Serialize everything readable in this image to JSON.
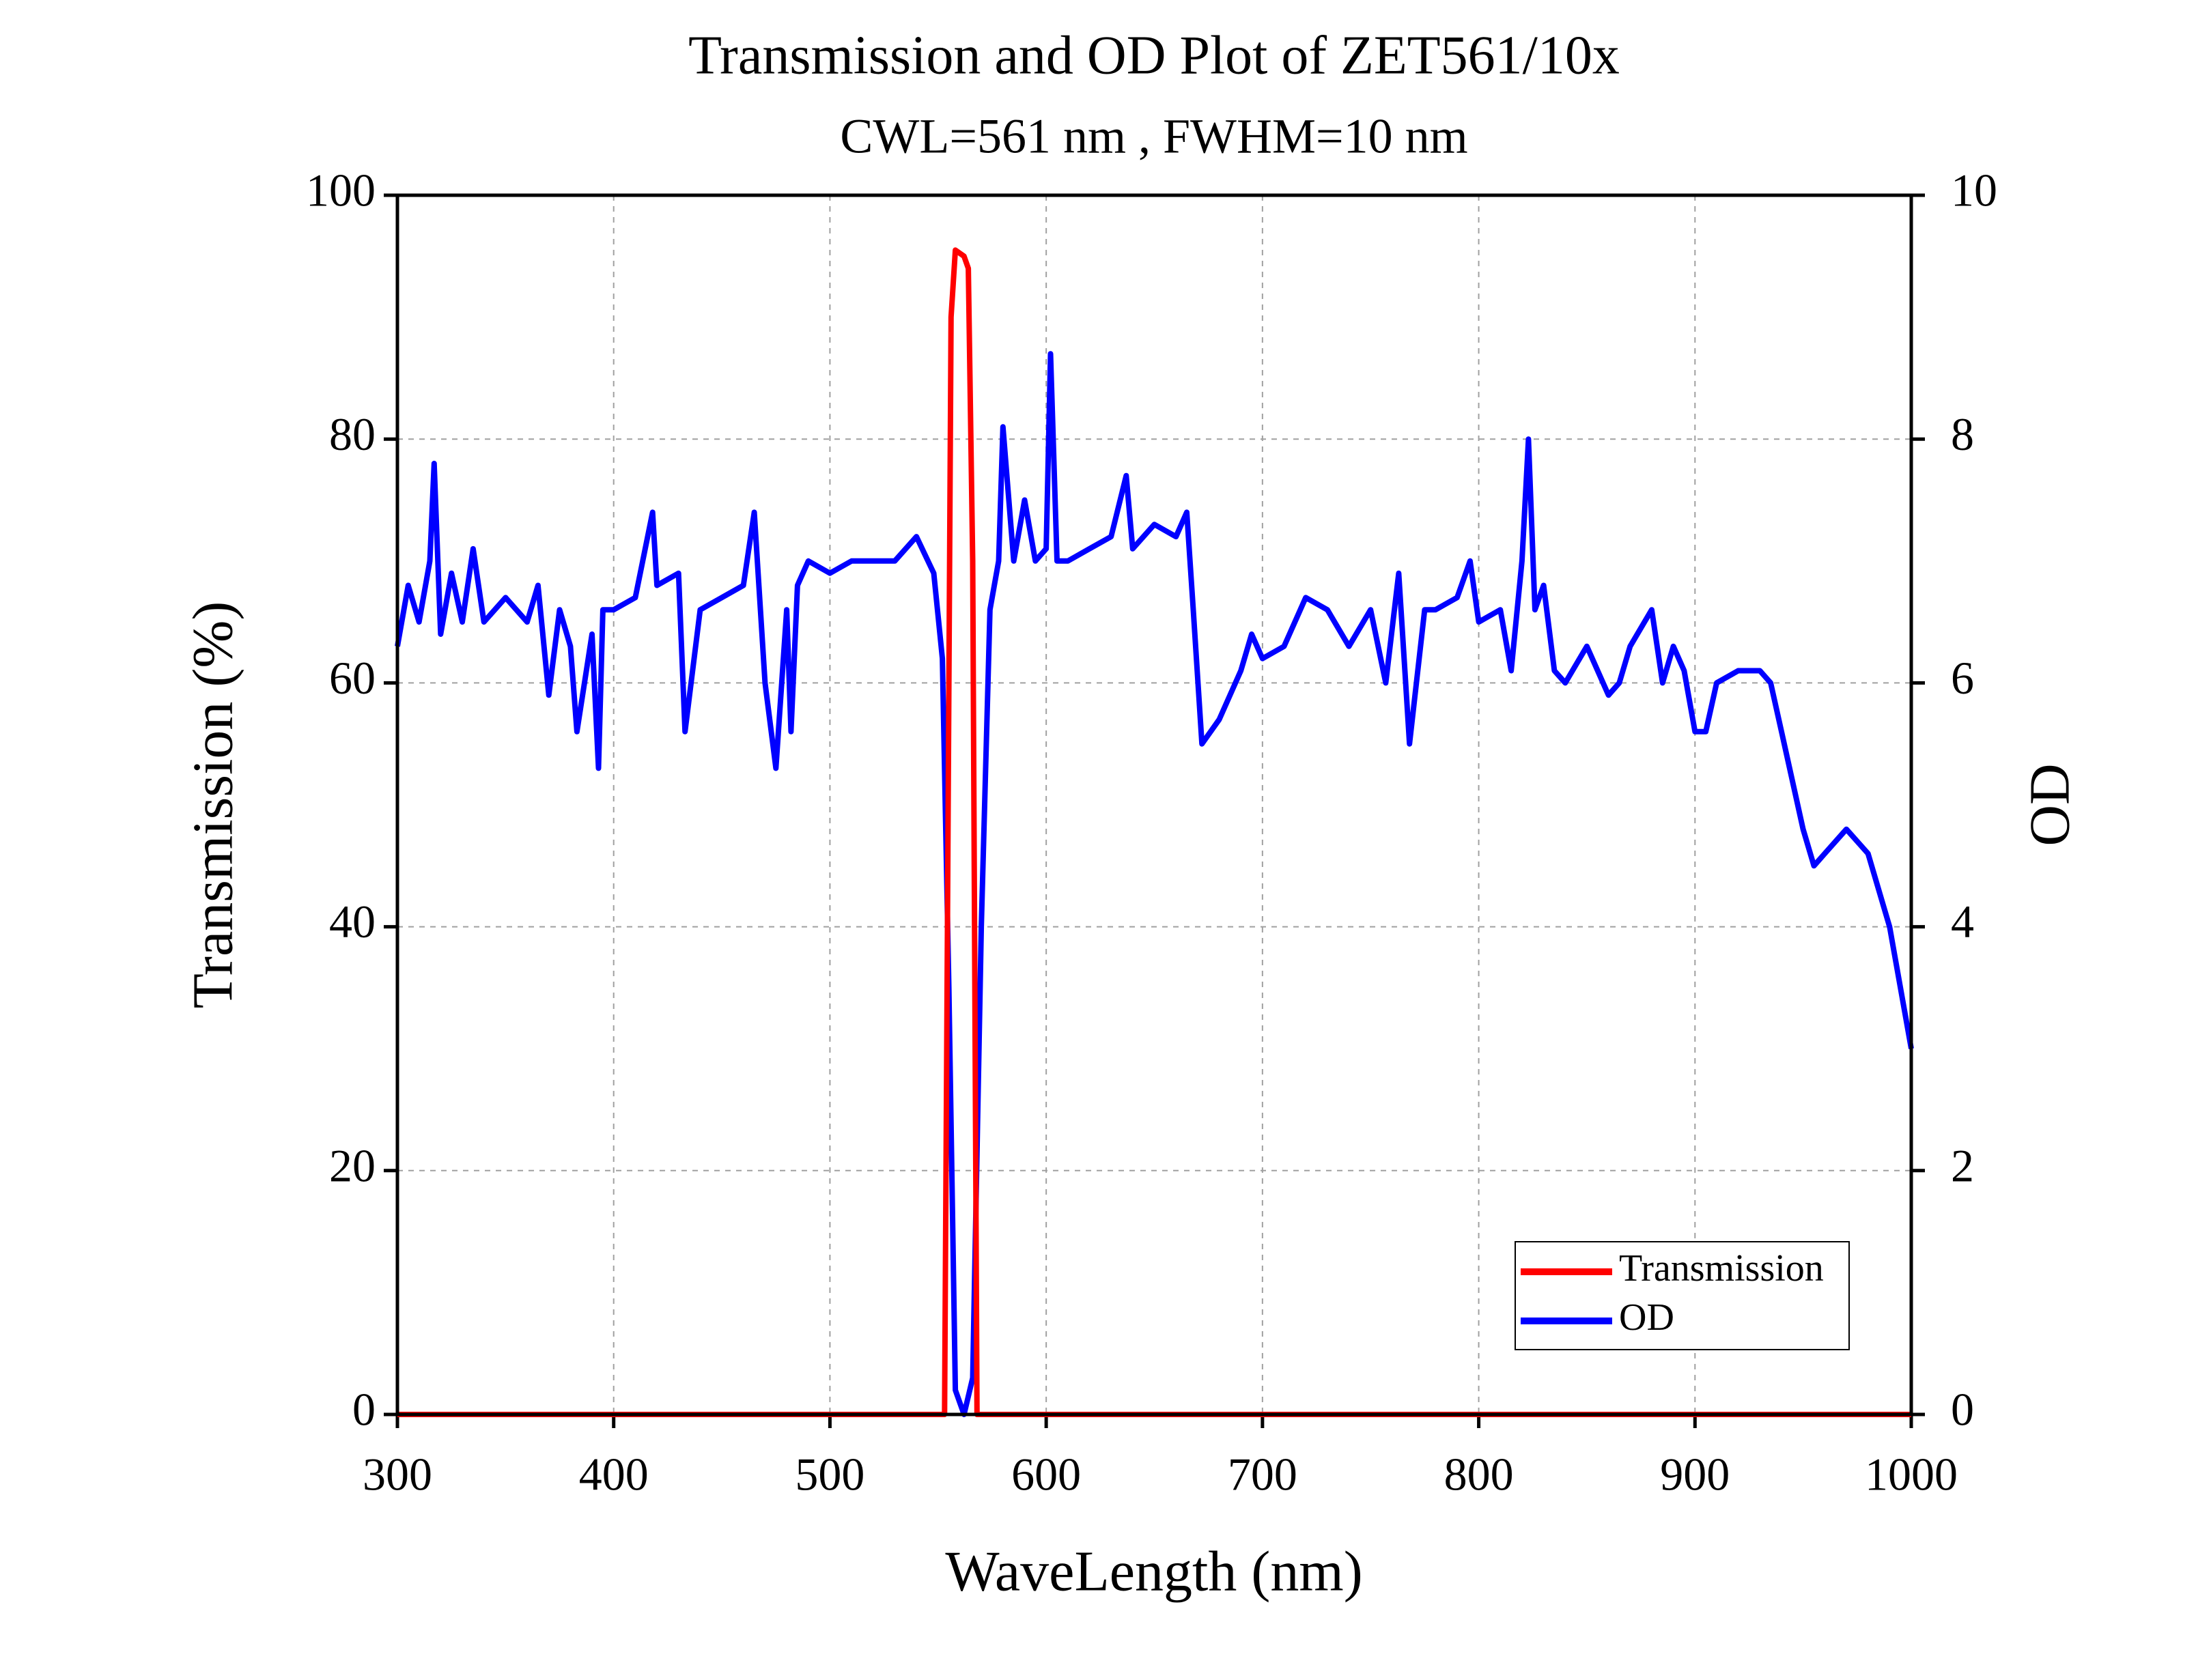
{
  "chart_data": {
    "type": "line",
    "title": "Transmission and OD Plot of ZET561/10x",
    "subtitle": "CWL=561 nm , FWHM=10 nm",
    "x_label": "WaveLength (nm)",
    "y_label": "Transmission (%)",
    "y2_label": "OD",
    "xlim": [
      300,
      1000
    ],
    "xticks": [
      300,
      400,
      500,
      600,
      700,
      800,
      900,
      1000
    ],
    "ylim": [
      0,
      100
    ],
    "yticks": [
      0,
      20,
      40,
      60,
      80,
      100
    ],
    "y2lim": [
      0,
      10
    ],
    "y2ticks": [
      0,
      2,
      4,
      6,
      8,
      10
    ],
    "grid": true,
    "legend": "lower right",
    "series": [
      {
        "name": "Transmission",
        "color": "#ff0000",
        "x": [
          300,
          553,
          556,
          558,
          562,
          564,
          566,
          568,
          1000
        ],
        "values": [
          0,
          0,
          90,
          95.5,
          95,
          94,
          70,
          0,
          0
        ]
      },
      {
        "name": "OD",
        "color": "#0000ff",
        "axis": "y2",
        "x": [
          300,
          305,
          310,
          315,
          317,
          320,
          325,
          330,
          335,
          340,
          350,
          360,
          365,
          370,
          375,
          380,
          383,
          390,
          393,
          395,
          400,
          410,
          418,
          420,
          430,
          433,
          440,
          450,
          460,
          465,
          470,
          475,
          480,
          482,
          485,
          490,
          500,
          510,
          520,
          530,
          540,
          548,
          552,
          555,
          558,
          562,
          566,
          570,
          574,
          578,
          580,
          585,
          590,
          595,
          600,
          602,
          605,
          610,
          620,
          630,
          637,
          640,
          650,
          660,
          665,
          668,
          672,
          680,
          690,
          695,
          700,
          710,
          720,
          730,
          740,
          750,
          757,
          763,
          768,
          775,
          780,
          790,
          796,
          800,
          810,
          815,
          820,
          823,
          826,
          830,
          835,
          840,
          850,
          860,
          865,
          870,
          880,
          885,
          890,
          895,
          900,
          905,
          910,
          920,
          930,
          935,
          940,
          950,
          955,
          960,
          970,
          980,
          990,
          1000
        ],
        "values": [
          6.3,
          6.8,
          6.5,
          7.0,
          7.8,
          6.4,
          6.9,
          6.5,
          7.1,
          6.5,
          6.7,
          6.5,
          6.8,
          5.9,
          6.6,
          6.3,
          5.6,
          6.4,
          5.3,
          6.6,
          6.6,
          6.7,
          7.4,
          6.8,
          6.9,
          5.6,
          6.6,
          6.7,
          6.8,
          7.4,
          6.0,
          5.3,
          6.6,
          5.6,
          6.8,
          7.0,
          6.9,
          7.0,
          7.0,
          7.0,
          7.2,
          6.9,
          6.2,
          3.5,
          0.2,
          0,
          0.3,
          4.0,
          6.6,
          7.0,
          8.1,
          7.0,
          7.5,
          7.0,
          7.1,
          8.7,
          7.0,
          7.0,
          7.1,
          7.2,
          7.7,
          7.1,
          7.3,
          7.2,
          7.4,
          6.6,
          5.5,
          5.7,
          6.1,
          6.4,
          6.2,
          6.3,
          6.7,
          6.6,
          6.3,
          6.6,
          6.0,
          6.9,
          5.5,
          6.6,
          6.6,
          6.7,
          7.0,
          6.5,
          6.6,
          6.1,
          7.0,
          8.0,
          6.6,
          6.8,
          6.1,
          6.0,
          6.3,
          5.9,
          6.0,
          6.3,
          6.6,
          6.0,
          6.3,
          6.1,
          5.6,
          5.6,
          6.0,
          6.1,
          6.1,
          6.0,
          5.6,
          4.8,
          4.5,
          4.6,
          4.8,
          4.6,
          4.0,
          3.0
        ]
      }
    ]
  }
}
